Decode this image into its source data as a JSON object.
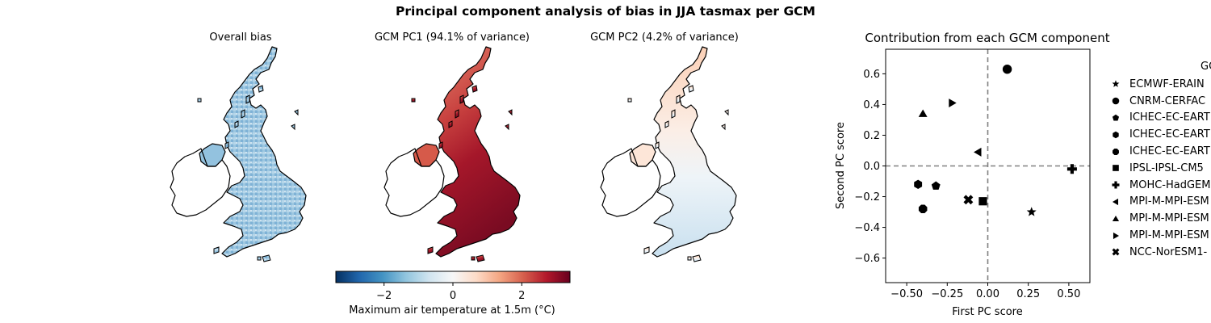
{
  "suptitle": "Principal component analysis of bias in JJA tasmax per GCM",
  "maps": [
    {
      "title": "Overall bias",
      "fill_mode": "overall"
    },
    {
      "title": "GCM PC1 (94.1% of variance)",
      "fill_mode": "pc1"
    },
    {
      "title": "GCM PC2 (4.2% of variance)",
      "fill_mode": "pc2"
    }
  ],
  "colorbar": {
    "label": "Maximum air temperature at 1.5m (°C)",
    "range": [
      -3.4,
      3.4
    ],
    "ticks": [
      "−2",
      "0",
      "2"
    ],
    "tick_values": [
      -2,
      0,
      2
    ],
    "colormap": "RdBu_r",
    "colors": [
      "#053061",
      "#2166ac",
      "#4393c3",
      "#92c5de",
      "#d1e5f0",
      "#f7f7f7",
      "#fddbc7",
      "#f4a582",
      "#d6604d",
      "#b2182b",
      "#67001f"
    ]
  },
  "chart_data": {
    "type": "scatter",
    "title": "Contribution from each GCM component",
    "xlabel": "First PC score",
    "ylabel": "Second PC score",
    "xlim": [
      -0.63,
      0.63
    ],
    "ylim": [
      -0.76,
      0.76
    ],
    "xticks": [
      -0.5,
      -0.25,
      0.0,
      0.25,
      0.5
    ],
    "xtick_labels": [
      "−0.50",
      "−0.25",
      "0.00",
      "0.25",
      "0.50"
    ],
    "yticks": [
      -0.6,
      -0.4,
      -0.2,
      0.0,
      0.2,
      0.4,
      0.6
    ],
    "ytick_labels": [
      "−0.6",
      "−0.4",
      "−0.2",
      "0.0",
      "0.2",
      "0.4",
      "0.6"
    ],
    "reference_lines": {
      "x": 0,
      "y": 0,
      "style": "dashed",
      "color": "#808080"
    },
    "legend_title": "GC",
    "legend_placement": "right, outside",
    "points": [
      {
        "label": "ECMWF-ERAIN",
        "marker": "star",
        "x": 0.27,
        "y": -0.3
      },
      {
        "label": "CNRM-CERFAC",
        "marker": "circle",
        "x": 0.12,
        "y": 0.63
      },
      {
        "label": "ICHEC-EC-EART",
        "marker": "pentagon",
        "x": -0.32,
        "y": -0.13
      },
      {
        "label": "ICHEC-EC-EART",
        "marker": "hexagon",
        "x": -0.43,
        "y": -0.12
      },
      {
        "label": "ICHEC-EC-EART",
        "marker": "octagon",
        "x": -0.4,
        "y": -0.28
      },
      {
        "label": "IPSL-IPSL-CM5",
        "marker": "square",
        "x": -0.03,
        "y": -0.23
      },
      {
        "label": "MOHC-HadGEM",
        "marker": "plus",
        "x": 0.52,
        "y": -0.02
      },
      {
        "label": "MPI-M-MPI-ESM",
        "marker": "triangle-left",
        "x": -0.06,
        "y": 0.09
      },
      {
        "label": "MPI-M-MPI-ESM",
        "marker": "triangle-up",
        "x": -0.4,
        "y": 0.34
      },
      {
        "label": "MPI-M-MPI-ESM",
        "marker": "triangle-right",
        "x": -0.22,
        "y": 0.41
      },
      {
        "label": "NCC-NorESM1-",
        "marker": "x",
        "x": -0.12,
        "y": -0.22
      }
    ]
  }
}
